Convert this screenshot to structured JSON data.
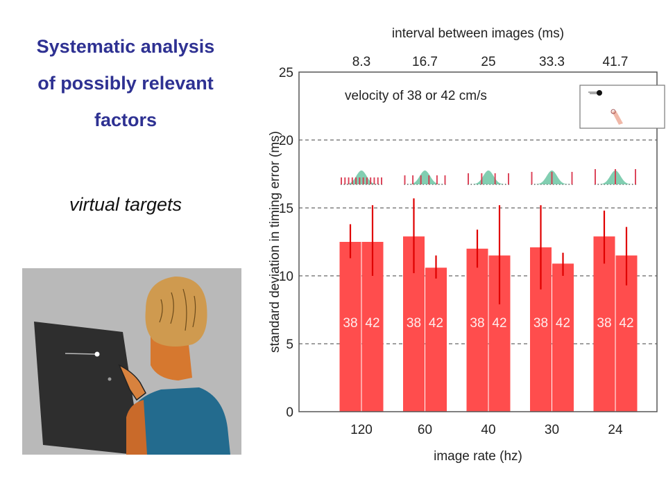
{
  "slide": {
    "title_lines": [
      "Systematic analysis",
      "of possibly relevant",
      "factors"
    ],
    "subtitle": "virtual targets"
  },
  "colors": {
    "title": "#2e3192",
    "bar": "#ff4d4d",
    "error_bar": "#e00000",
    "gaussian": "#6cc5a3",
    "frame": "#555555"
  },
  "chart_data": {
    "type": "bar",
    "title": "",
    "annotation": "velocity of 38 or 42 cm/s",
    "xlabel": "image rate (hz)",
    "x2label": "interval between images (ms)",
    "ylabel": "standard deviation in timing error (ms)",
    "categories": [
      "120",
      "60",
      "40",
      "30",
      "24"
    ],
    "top_categories": [
      "8.3",
      "16.7",
      "25",
      "33.3",
      "41.7"
    ],
    "ylim": [
      0,
      25
    ],
    "yticks": [
      "0",
      "5",
      "10",
      "15",
      "20",
      "25"
    ],
    "grid": "dashed-horizontal",
    "series": [
      {
        "name": "38",
        "values": [
          12.5,
          12.9,
          12.0,
          12.1,
          12.9
        ],
        "error_low": [
          11.3,
          10.2,
          10.6,
          9.0,
          10.9
        ],
        "error_high": [
          13.8,
          15.7,
          13.4,
          15.2,
          14.8
        ]
      },
      {
        "name": "42",
        "values": [
          12.5,
          10.6,
          11.5,
          10.9,
          11.5
        ],
        "error_low": [
          10.0,
          9.8,
          7.9,
          10.0,
          9.3
        ],
        "error_high": [
          15.2,
          11.5,
          15.2,
          11.7,
          13.6
        ]
      }
    ],
    "bar_labels": [
      "38",
      "42"
    ],
    "frame_tick_counts": [
      12,
      6,
      4,
      3,
      3
    ]
  }
}
